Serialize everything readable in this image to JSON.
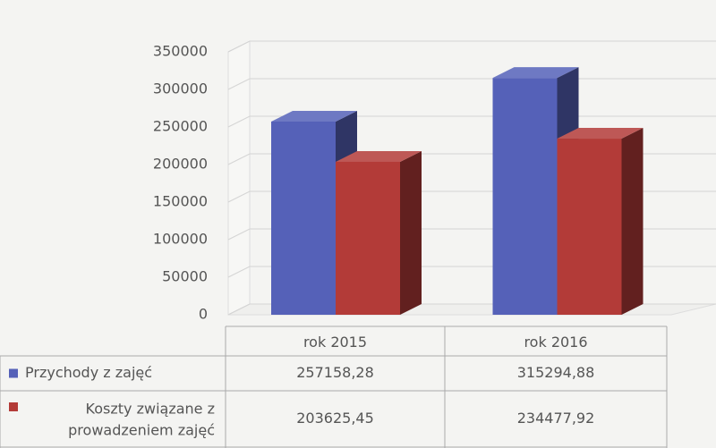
{
  "chart_data": {
    "type": "bar3d",
    "categories": [
      "rok 2015",
      "rok 2016"
    ],
    "series": [
      {
        "name": "Przychody z zajęć",
        "color": "#5561b8",
        "values": [
          257158.28,
          315294.88
        ],
        "value_labels": [
          "257158,28",
          "315294,88"
        ]
      },
      {
        "name": "Koszty związane z prowadzeniem zajęć",
        "color": "#b33b38",
        "values": [
          203625.45,
          234477.92
        ],
        "value_labels": [
          "203625,45",
          "234477,92"
        ]
      }
    ],
    "ylim": [
      0,
      350000
    ],
    "yticks": [
      0,
      50000,
      100000,
      150000,
      200000,
      250000,
      300000,
      350000
    ],
    "grid": true,
    "data_table": true
  }
}
